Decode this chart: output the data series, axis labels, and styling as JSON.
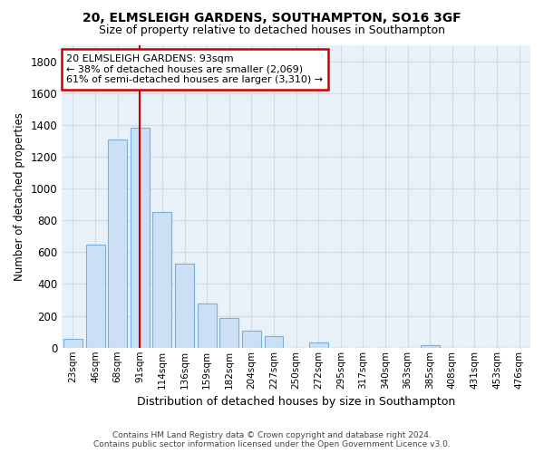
{
  "title1": "20, ELMSLEIGH GARDENS, SOUTHAMPTON, SO16 3GF",
  "title2": "Size of property relative to detached houses in Southampton",
  "xlabel": "Distribution of detached houses by size in Southampton",
  "ylabel": "Number of detached properties",
  "categories": [
    "23sqm",
    "46sqm",
    "68sqm",
    "91sqm",
    "114sqm",
    "136sqm",
    "159sqm",
    "182sqm",
    "204sqm",
    "227sqm",
    "250sqm",
    "272sqm",
    "295sqm",
    "317sqm",
    "340sqm",
    "363sqm",
    "385sqm",
    "408sqm",
    "431sqm",
    "453sqm",
    "476sqm"
  ],
  "values": [
    55,
    645,
    1310,
    1380,
    850,
    530,
    280,
    185,
    105,
    70,
    0,
    30,
    0,
    0,
    0,
    0,
    15,
    0,
    0,
    0,
    0
  ],
  "bar_color": "#cce0f5",
  "bar_edge_color": "#7ab0d8",
  "red_line_x": 3,
  "annotation_title": "20 ELMSLEIGH GARDENS: 93sqm",
  "annotation_line1": "← 38% of detached houses are smaller (2,069)",
  "annotation_line2": "61% of semi-detached houses are larger (3,310) →",
  "annotation_box_color": "#ffffff",
  "annotation_box_edge": "#cc0000",
  "ylim": [
    0,
    1900
  ],
  "yticks": [
    0,
    200,
    400,
    600,
    800,
    1000,
    1200,
    1400,
    1600,
    1800
  ],
  "grid_color": "#d0dce8",
  "background_color": "#e8f0f8",
  "fig_background": "#ffffff",
  "footer1": "Contains HM Land Registry data © Crown copyright and database right 2024.",
  "footer2": "Contains public sector information licensed under the Open Government Licence v3.0."
}
